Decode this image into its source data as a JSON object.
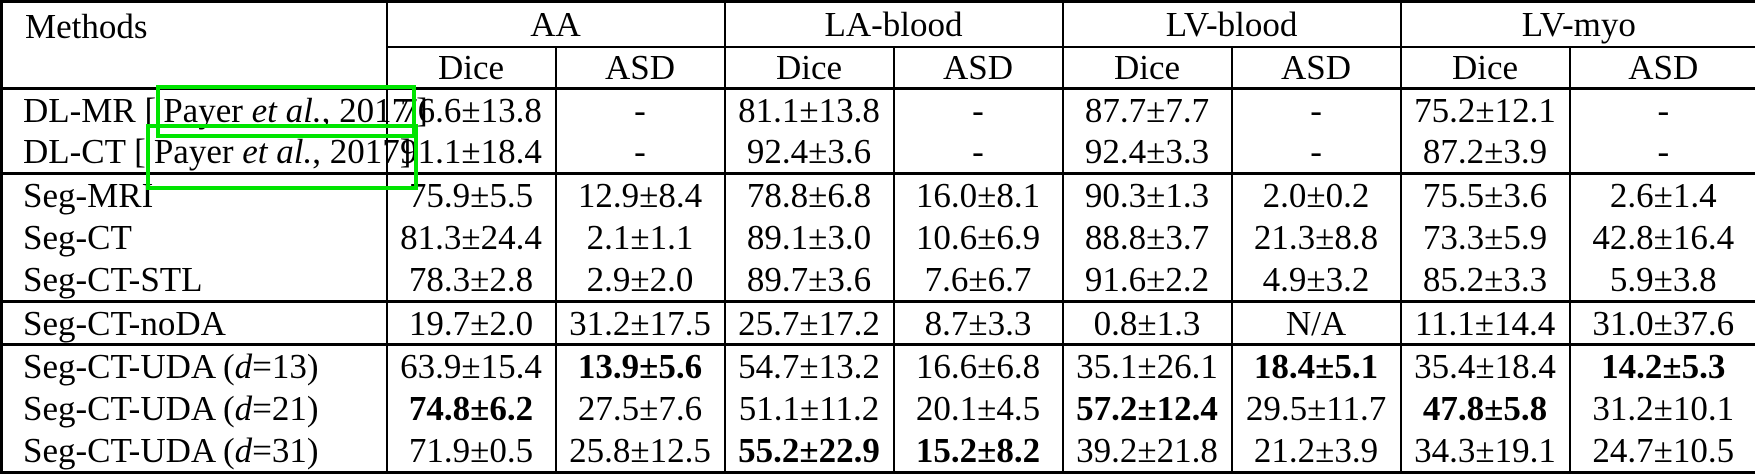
{
  "colors": {
    "citation_box_green": "#00e400",
    "table_border": "#000000",
    "background": "#ffffff",
    "text": "#000000"
  },
  "table": {
    "header": {
      "methods": "Methods",
      "groups": [
        {
          "label": "AA"
        },
        {
          "label": "LA-blood"
        },
        {
          "label": "LV-blood"
        },
        {
          "label": "LV-myo"
        }
      ],
      "sub": [
        "Dice",
        "ASD",
        "Dice",
        "ASD",
        "Dice",
        "ASD",
        "Dice",
        "ASD"
      ]
    },
    "rows": [
      {
        "method": [
          {
            "t": "DL-MR ["
          },
          {
            "box": [
              {
                "t": "Payer "
              },
              {
                "t": "et al.",
                "i": true
              },
              {
                "t": ", 2017"
              }
            ]
          },
          {
            "t": "]"
          }
        ],
        "cells": [
          {
            "v": "76.6±13.8"
          },
          {
            "v": "-"
          },
          {
            "v": "81.1±13.8"
          },
          {
            "v": "-"
          },
          {
            "v": "87.7±7.7"
          },
          {
            "v": "-"
          },
          {
            "v": "75.2±12.1"
          },
          {
            "v": "-"
          }
        ]
      },
      {
        "method": [
          {
            "t": "DL-CT ["
          },
          {
            "box": [
              {
                "t": "Payer "
              },
              {
                "t": "et al.",
                "i": true
              },
              {
                "t": ", 2017]"
              }
            ],
            "tall": true
          }
        ],
        "cells": [
          {
            "v": "91.1±18.4"
          },
          {
            "v": "-"
          },
          {
            "v": "92.4±3.6"
          },
          {
            "v": "-"
          },
          {
            "v": "92.4±3.3"
          },
          {
            "v": "-"
          },
          {
            "v": "87.2±3.9"
          },
          {
            "v": "-"
          }
        ]
      },
      {
        "group_start": true,
        "method": [
          {
            "t": "Seg-MRI"
          }
        ],
        "cells": [
          {
            "v": "75.9±5.5"
          },
          {
            "v": "12.9±8.4"
          },
          {
            "v": "78.8±6.8"
          },
          {
            "v": "16.0±8.1"
          },
          {
            "v": "90.3±1.3"
          },
          {
            "v": "2.0±0.2"
          },
          {
            "v": "75.5±3.6"
          },
          {
            "v": "2.6±1.4"
          }
        ]
      },
      {
        "method": [
          {
            "t": "Seg-CT"
          }
        ],
        "cells": [
          {
            "v": "81.3±24.4"
          },
          {
            "v": "2.1±1.1"
          },
          {
            "v": "89.1±3.0"
          },
          {
            "v": "10.6±6.9"
          },
          {
            "v": "88.8±3.7"
          },
          {
            "v": "21.3±8.8"
          },
          {
            "v": "73.3±5.9"
          },
          {
            "v": "42.8±16.4"
          }
        ]
      },
      {
        "method": [
          {
            "t": "Seg-CT-STL"
          }
        ],
        "cells": [
          {
            "v": "78.3±2.8"
          },
          {
            "v": "2.9±2.0"
          },
          {
            "v": "89.7±3.6"
          },
          {
            "v": "7.6±6.7"
          },
          {
            "v": "91.6±2.2"
          },
          {
            "v": "4.9±3.2"
          },
          {
            "v": "85.2±3.3"
          },
          {
            "v": "5.9±3.8"
          }
        ]
      },
      {
        "group_start": true,
        "method": [
          {
            "t": "Seg-CT-noDA"
          }
        ],
        "cells": [
          {
            "v": "19.7±2.0"
          },
          {
            "v": "31.2±17.5"
          },
          {
            "v": "25.7±17.2"
          },
          {
            "v": "8.7±3.3"
          },
          {
            "v": "0.8±1.3"
          },
          {
            "v": "N/A"
          },
          {
            "v": "11.1±14.4"
          },
          {
            "v": "31.0±37.6"
          }
        ]
      },
      {
        "group_start": true,
        "method": [
          {
            "t": "Seg-CT-UDA ("
          },
          {
            "t": "d",
            "i": true
          },
          {
            "t": "=13)"
          }
        ],
        "cells": [
          {
            "v": "63.9±15.4"
          },
          {
            "v": "13.9±5.6",
            "b": true
          },
          {
            "v": "54.7±13.2"
          },
          {
            "v": "16.6±6.8"
          },
          {
            "v": "35.1±26.1"
          },
          {
            "v": "18.4±5.1",
            "b": true
          },
          {
            "v": "35.4±18.4"
          },
          {
            "v": "14.2±5.3",
            "b": true
          }
        ]
      },
      {
        "method": [
          {
            "t": "Seg-CT-UDA ("
          },
          {
            "t": "d",
            "i": true
          },
          {
            "t": "=21)"
          }
        ],
        "cells": [
          {
            "v": "74.8±6.2",
            "b": true
          },
          {
            "v": "27.5±7.6"
          },
          {
            "v": "51.1±11.2"
          },
          {
            "v": "20.1±4.5"
          },
          {
            "v": "57.2±12.4",
            "b": true
          },
          {
            "v": "29.5±11.7"
          },
          {
            "v": "47.8±5.8",
            "b": true
          },
          {
            "v": "31.2±10.1"
          }
        ]
      },
      {
        "method": [
          {
            "t": "Seg-CT-UDA ("
          },
          {
            "t": "d",
            "i": true
          },
          {
            "t": "=31)"
          }
        ],
        "cells": [
          {
            "v": "71.9±0.5"
          },
          {
            "v": "25.8±12.5"
          },
          {
            "v": "55.2±22.9",
            "b": true
          },
          {
            "v": "15.2±8.2",
            "b": true
          },
          {
            "v": "39.2±21.8"
          },
          {
            "v": "21.2±3.9"
          },
          {
            "v": "34.3±19.1"
          },
          {
            "v": "24.7±10.5"
          }
        ]
      }
    ]
  }
}
